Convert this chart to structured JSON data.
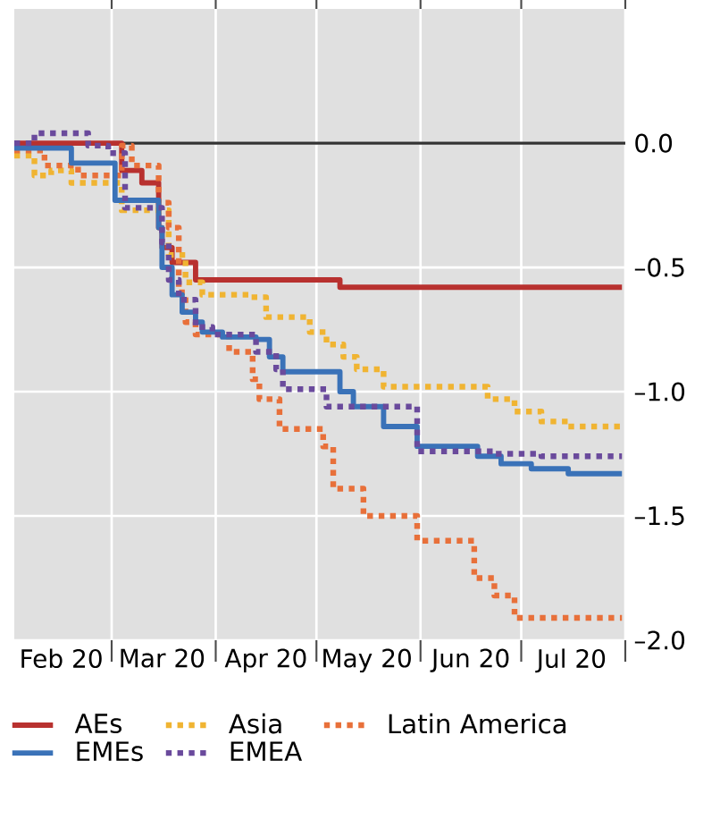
{
  "chart_data": {
    "type": "step",
    "xlim": [
      "2020-02-01",
      "2020-08-01"
    ],
    "ylim": [
      -2.0,
      0.54
    ],
    "xticks": [
      {
        "value": "2020-03-01",
        "label": null
      },
      {
        "value": "2020-04-01",
        "label": null
      },
      {
        "value": "2020-05-01",
        "label": null
      },
      {
        "value": "2020-06-01",
        "label": null
      },
      {
        "value": "2020-07-01",
        "label": null
      },
      {
        "value": "2020-08-01",
        "label": null
      },
      {
        "value": "2020-02-15",
        "label": "Feb 20"
      },
      {
        "value": "2020-03-16",
        "label": "Mar 20"
      },
      {
        "value": "2020-04-16",
        "label": "Apr 20"
      },
      {
        "value": "2020-05-16",
        "label": "May 20"
      },
      {
        "value": "2020-06-16",
        "label": "Jun 20"
      },
      {
        "value": "2020-07-16",
        "label": "Jul 20"
      }
    ],
    "yticks": [
      {
        "value": 0,
        "label": "0.0"
      },
      {
        "value": -0.5,
        "label": "–0.5"
      },
      {
        "value": -1.0,
        "label": "–1.0"
      },
      {
        "value": -1.5,
        "label": "–1.5"
      },
      {
        "value": -2.0,
        "label": "–2.0"
      }
    ],
    "grid": true,
    "legend": "bottom",
    "ref_lines": [
      {
        "axis": "y",
        "value": 0,
        "color": "#333333"
      }
    ],
    "series": [
      {
        "name": "AEs",
        "color": "#b8312f",
        "line_style": "solid",
        "x": [
          "2020-02-01",
          "2020-03-04",
          "2020-03-10",
          "2020-03-15",
          "2020-03-16",
          "2020-03-19",
          "2020-03-26",
          "2020-05-08",
          "2020-07-31"
        ],
        "values": [
          0,
          -0.11,
          -0.16,
          -0.34,
          -0.42,
          -0.48,
          -0.55,
          -0.58,
          -0.58
        ]
      },
      {
        "name": "Asia",
        "color": "#f0b432",
        "line_style": "dotted",
        "x": [
          "2020-02-01",
          "2020-02-07",
          "2020-02-12",
          "2020-02-18",
          "2020-03-04",
          "2020-03-18",
          "2020-03-23",
          "2020-03-28",
          "2020-04-11",
          "2020-04-16",
          "2020-04-29",
          "2020-05-04",
          "2020-05-09",
          "2020-05-13",
          "2020-05-21",
          "2020-06-21",
          "2020-06-29",
          "2020-07-07",
          "2020-07-15",
          "2020-07-31"
        ],
        "values": [
          -0.05,
          -0.13,
          -0.11,
          -0.16,
          -0.27,
          -0.45,
          -0.56,
          -0.61,
          -0.62,
          -0.7,
          -0.76,
          -0.81,
          -0.86,
          -0.91,
          -0.98,
          -1.03,
          -1.08,
          -1.12,
          -1.14,
          -1.14
        ]
      },
      {
        "name": "Latin America",
        "color": "#e8703a",
        "line_style": "dotted",
        "x": [
          "2020-02-01",
          "2020-02-10",
          "2020-02-20",
          "2020-03-04",
          "2020-03-07",
          "2020-03-15",
          "2020-03-18",
          "2020-03-21",
          "2020-03-23",
          "2020-03-26",
          "2020-04-05",
          "2020-04-12",
          "2020-04-14",
          "2020-04-20",
          "2020-05-03",
          "2020-05-06",
          "2020-05-15",
          "2020-05-31",
          "2020-06-17",
          "2020-06-23",
          "2020-06-29",
          "2020-07-31"
        ],
        "values": [
          -0.03,
          -0.09,
          -0.13,
          -0.01,
          -0.09,
          -0.24,
          -0.34,
          -0.6,
          -0.72,
          -0.77,
          -0.84,
          -0.95,
          -1.03,
          -1.15,
          -1.22,
          -1.39,
          -1.5,
          -1.6,
          -1.75,
          -1.82,
          -1.91,
          -1.91
        ]
      },
      {
        "name": "EMEs",
        "color": "#3a72b8",
        "line_style": "solid",
        "x": [
          "2020-02-01",
          "2020-02-18",
          "2020-03-02",
          "2020-03-15",
          "2020-03-16",
          "2020-03-19",
          "2020-03-22",
          "2020-03-26",
          "2020-03-28",
          "2020-04-03",
          "2020-04-13",
          "2020-04-17",
          "2020-04-21",
          "2020-05-08",
          "2020-05-12",
          "2020-05-21",
          "2020-05-31",
          "2020-06-18",
          "2020-06-25",
          "2020-07-04",
          "2020-07-15",
          "2020-07-31"
        ],
        "values": [
          -0.02,
          -0.08,
          -0.23,
          -0.34,
          -0.5,
          -0.61,
          -0.68,
          -0.72,
          -0.76,
          -0.78,
          -0.79,
          -0.86,
          -0.92,
          -1.0,
          -1.06,
          -1.14,
          -1.22,
          -1.26,
          -1.29,
          -1.31,
          -1.33,
          -1.33
        ]
      },
      {
        "name": "EMEA",
        "color": "#6a4a9c",
        "line_style": "dotted",
        "x": [
          "2020-02-01",
          "2020-02-07",
          "2020-02-23",
          "2020-02-29",
          "2020-03-05",
          "2020-03-16",
          "2020-03-18",
          "2020-03-21",
          "2020-03-26",
          "2020-03-31",
          "2020-04-13",
          "2020-04-19",
          "2020-04-21",
          "2020-05-04",
          "2020-05-31",
          "2020-06-23",
          "2020-07-07",
          "2020-07-31"
        ],
        "values": [
          0,
          0.04,
          -0.01,
          -0.04,
          -0.26,
          -0.4,
          -0.55,
          -0.63,
          -0.74,
          -0.77,
          -0.84,
          -0.91,
          -0.99,
          -1.06,
          -1.24,
          -1.25,
          -1.26,
          -1.26
        ]
      }
    ]
  }
}
